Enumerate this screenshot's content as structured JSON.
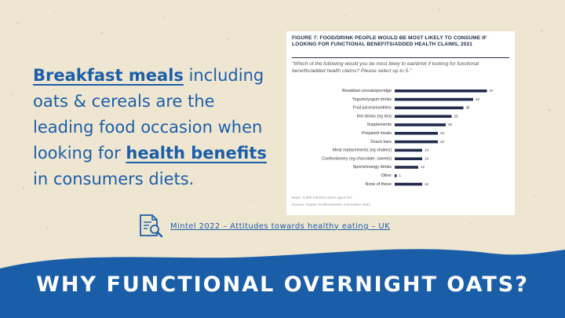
{
  "headline": {
    "part1": "Breakfast meals",
    "part2": " including oats & cereals are the leading food occasion when looking for ",
    "part3": "health benefits",
    "part4": " in consumers diets."
  },
  "source": {
    "link_text": "Mintel 2022 – Attitudes towards healthy eating – UK",
    "icon": "document-search-icon"
  },
  "banner": {
    "title": "WHY FUNCTIONAL OVERNIGHT OATS?"
  },
  "colors": {
    "brand_blue": "#1b5ea8",
    "bar": "#232b4d",
    "background": "#efe6d2"
  },
  "chart_data": {
    "type": "bar",
    "orientation": "horizontal",
    "title": "FIGURE 7: FOOD/DRINK PEOPLE WOULD BE MOST LIKELY TO CONSUME IF LOOKING FOR FUNCTIONAL BENEFITS/ADDED HEALTH CLAIMS, 2021",
    "subtitle": "\"Which of the following would you be most likely to eat/drink if looking for functional benefits/added health claims? Please select up to 5.\"",
    "categories": [
      "Breakfast cereals/porridge",
      "Yogurts/yogurt drinks",
      "Fruit juice/smoothies",
      "Hot drinks (eg tea)",
      "Supplements",
      "Prepared meals",
      "Snack bars",
      "Meal replacements (eg shakes)",
      "Confectionery (eg chocolate, sweets)",
      "Sports/energy drinks",
      "Other",
      "None of these"
    ],
    "values": [
      47,
      40,
      35,
      29,
      26,
      22,
      22,
      14,
      14,
      12,
      1,
      14
    ],
    "xlim": [
      0,
      50
    ],
    "base_note": "Base: 2,000 internet users aged 16+",
    "source_note": "Source: Kantar Profiles/Mintel, December 2021"
  }
}
